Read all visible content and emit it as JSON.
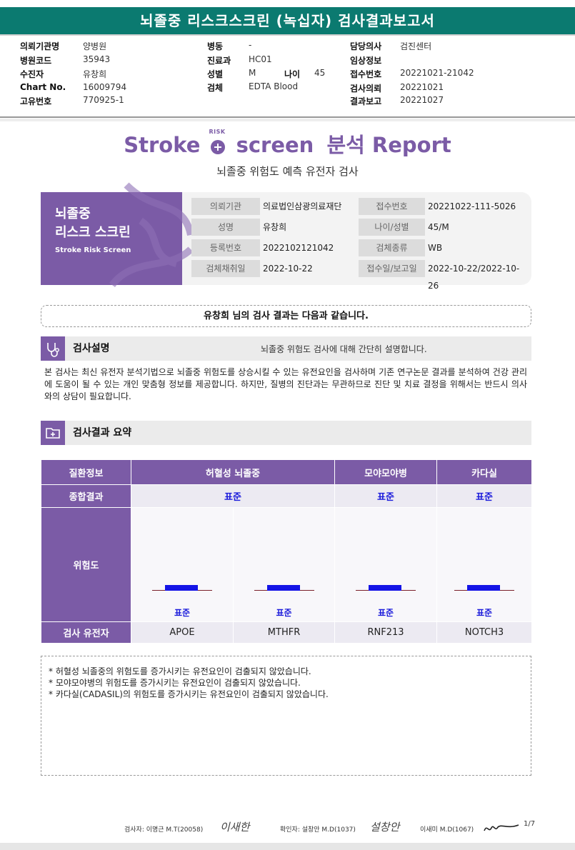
{
  "report_title": "뇌졸중 리스크스크린 (녹십자) 검사결과보고서",
  "header": {
    "col1": [
      {
        "label": "의뢰기관명",
        "value": "양병원"
      },
      {
        "label": "병원코드",
        "value": "35943"
      },
      {
        "label": "수진자",
        "value": "유창희"
      },
      {
        "label": "Chart No.",
        "value": "16009794"
      },
      {
        "label": "고유번호",
        "value": "770925-1"
      }
    ],
    "col2": [
      {
        "label": "병동",
        "value": "-"
      },
      {
        "label": "진료과",
        "value": "HC01"
      },
      {
        "label": "성별",
        "value": "M"
      },
      {
        "label": "검체",
        "value": "EDTA Blood"
      }
    ],
    "age": {
      "label": "나이",
      "value": "45"
    },
    "col3": [
      {
        "label": "담당의사",
        "value": "검진센터"
      },
      {
        "label": "임상정보",
        "value": ""
      },
      {
        "label": "접수번호",
        "value": "20221021-21042"
      },
      {
        "label": "검사의뢰",
        "value": "20221021"
      },
      {
        "label": "결과보고",
        "value": "20221027"
      }
    ]
  },
  "logo": {
    "part1": "Stroke",
    "risk": "RISK",
    "part2": "screen",
    "part3": "분석 Report"
  },
  "subtitle": "뇌졸중 위험도 예측 유전자 검사",
  "card": {
    "title_line1": "뇌졸중",
    "title_line2": "리스크 스크린",
    "subtitle": "Stroke Risk Screen",
    "fields": [
      {
        "label": "의뢰기관",
        "value": "의료법인삼광의료재단"
      },
      {
        "label": "접수번호",
        "value": "20221022-111-5026"
      },
      {
        "label": "성명",
        "value": "유창희"
      },
      {
        "label": "나이/성별",
        "value": "45/M"
      },
      {
        "label": "등록번호",
        "value": "2022102121042"
      },
      {
        "label": "검체종류",
        "value": "WB"
      },
      {
        "label": "검체채취일",
        "value": "2022-10-22"
      },
      {
        "label": "접수일/보고일",
        "value": "2022-10-22/2022-10-26"
      }
    ]
  },
  "banner": "유창희 님의 검사 결과는 다음과 같습니다.",
  "section1": {
    "title": "검사설명",
    "note": "뇌졸중 위험도 검사에 대해 간단히 설명합니다."
  },
  "description": "본 검사는 최신 유전자 분석기법으로 뇌졸중 위험도를 상승시킬 수 있는 유전요인을 검사하며 기존 연구논문 결과를 분석하여 건강 관리에 도움이 될 수 있는 개인 맞춤형 정보를 제공합니다. 하지만, 질병의 진단과는 무관하므로 진단 및 치료 결정을 위해서는 반드시 의사와의 상담이 필요합니다.",
  "section2": {
    "title": "검사결과 요약"
  },
  "results": {
    "row_disease": "질환정보",
    "diseases": [
      "허혈성 뇌졸중",
      "모야모야병",
      "카다실"
    ],
    "row_overall": "종합결과",
    "overall": [
      "표준",
      "표준",
      "표준"
    ],
    "row_risk": "위험도",
    "risk_labels": [
      "표준",
      "표준",
      "표준",
      "표준"
    ],
    "row_genes": "검사 유전자",
    "genes": [
      "APOE",
      "MTHFR",
      "RNF213",
      "NOTCH3"
    ]
  },
  "notes": [
    "* 허혈성 뇌졸중의 위험도를 증가시키는 유전요인이 검출되지 않았습니다.",
    "* 모야모야병의 위험도를 증가시키는 유전요인이 검출되지 않았습니다.",
    "* 카다실(CADASIL)의 위험도를 증가시키는 유전요인이 검출되지 않았습니다."
  ],
  "footer": {
    "tester": "검사자: 이명근 M.T(20058)",
    "confirmer": "확인자: 설창안 M.D(1037)",
    "third": "이새미 M.D(1067)",
    "page": "1/7",
    "sig1": "이새한",
    "sig2": "설창안"
  },
  "colors": {
    "teal": "#0b7a70",
    "purple": "#7b5ba6",
    "result_blue": "#1a1adb"
  }
}
